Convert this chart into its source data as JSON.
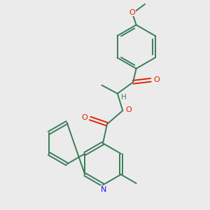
{
  "bg_color": "#ebebeb",
  "bond_color": "#3a7d5a",
  "oxygen_color": "#dd2200",
  "nitrogen_color": "#1a1aee",
  "lw": 1.4,
  "figsize": [
    3.0,
    3.0
  ],
  "dpi": 100,
  "xlim": [
    0,
    10
  ],
  "ylim": [
    0,
    10
  ]
}
